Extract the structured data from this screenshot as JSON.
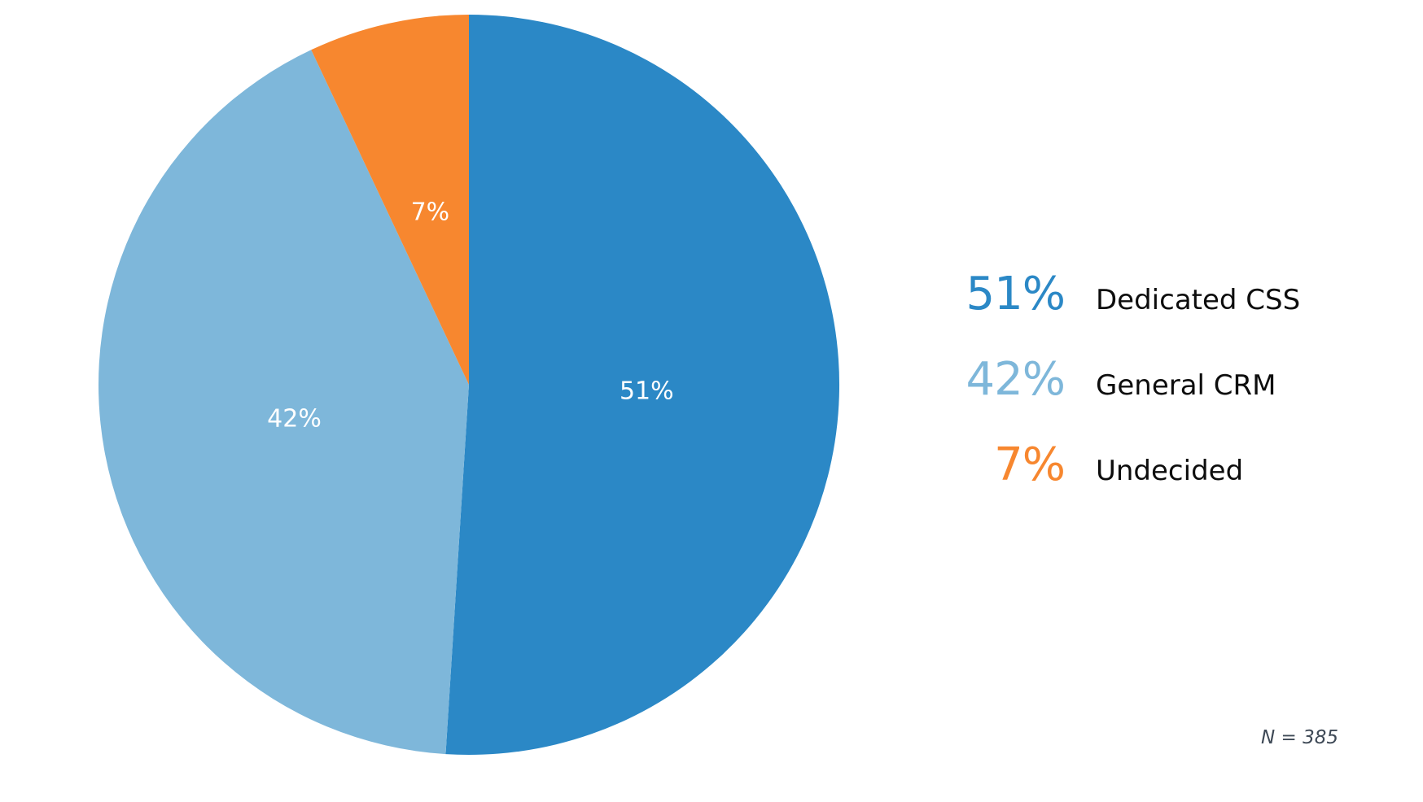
{
  "chart_data": {
    "type": "pie",
    "title": "",
    "categories": [
      "Dedicated CSS",
      "General CRM",
      "Undecided"
    ],
    "values": [
      51,
      42,
      7
    ],
    "slices": [
      {
        "label": "Dedicated CSS",
        "value": 51,
        "display": "51%",
        "color": "#2B88C6"
      },
      {
        "label": "General CRM",
        "value": 42,
        "display": "42%",
        "color": "#7EB7DA"
      },
      {
        "label": "Undecided",
        "value": 7,
        "display": "7%",
        "color": "#F7872F"
      }
    ],
    "start_angle_deg": 0,
    "direction": "clockwise",
    "slice_label_color": "#FFFFFF",
    "slice_label_radius_fraction": 0.48,
    "legend_position": "right",
    "note": "N = 385",
    "note_color": "#3E4956"
  }
}
